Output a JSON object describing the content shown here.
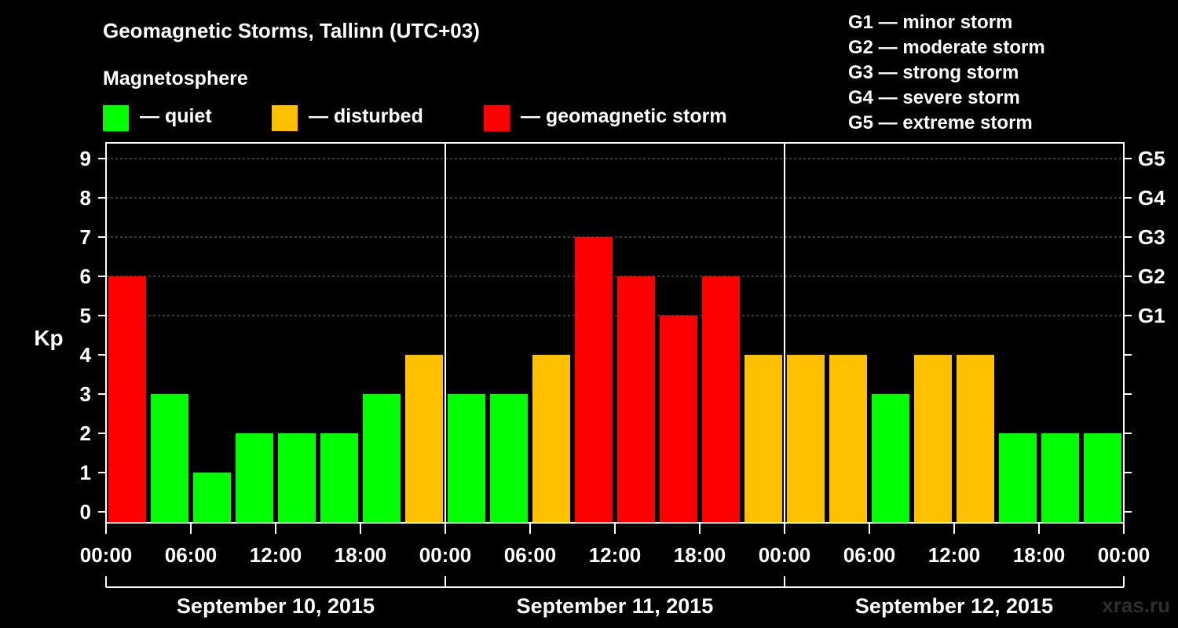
{
  "header": {
    "title": "Geomagnetic Storms, Tallinn (UTC+03)",
    "legend_heading": "Magnetosphere"
  },
  "legend": [
    {
      "label": "— quiet",
      "color": "#00ff00"
    },
    {
      "label": "— disturbed",
      "color": "#ffc000"
    },
    {
      "label": "— geomagnetic storm",
      "color": "#ff0000"
    }
  ],
  "storm_scale": [
    "G1 — minor storm",
    "G2 — moderate storm",
    "G3 — strong storm",
    "G4 — severe storm",
    "G5 — extreme storm"
  ],
  "watermark": "xras.ru",
  "chart_data": {
    "type": "bar",
    "ylabel": "Kp",
    "ylim": [
      0,
      9
    ],
    "yticks": [
      "0",
      "1",
      "2",
      "3",
      "4",
      "5",
      "6",
      "7",
      "8",
      "9"
    ],
    "right_ticks": [
      {
        "kp": 5,
        "label": "G1"
      },
      {
        "kp": 6,
        "label": "G2"
      },
      {
        "kp": 7,
        "label": "G3"
      },
      {
        "kp": 8,
        "label": "G4"
      },
      {
        "kp": 9,
        "label": "G5"
      }
    ],
    "grid": "dashed horizontal lines at Kp 5–9",
    "xtick_labels": [
      "00:00",
      "06:00",
      "12:00",
      "18:00",
      "00:00",
      "06:00",
      "12:00",
      "18:00",
      "00:00",
      "06:00",
      "12:00",
      "18:00",
      "00:00"
    ],
    "days": [
      "September 10, 2015",
      "September 11, 2015",
      "September 12, 2015"
    ],
    "interval_hours": 3,
    "values": [
      6,
      3,
      1,
      2,
      2,
      2,
      3,
      4,
      3,
      3,
      4,
      7,
      6,
      5,
      6,
      4,
      4,
      4,
      3,
      4,
      4,
      2,
      2,
      2
    ],
    "colors": {
      "quiet": "#00ff00",
      "disturbed": "#ffc000",
      "storm": "#ff0000"
    }
  }
}
